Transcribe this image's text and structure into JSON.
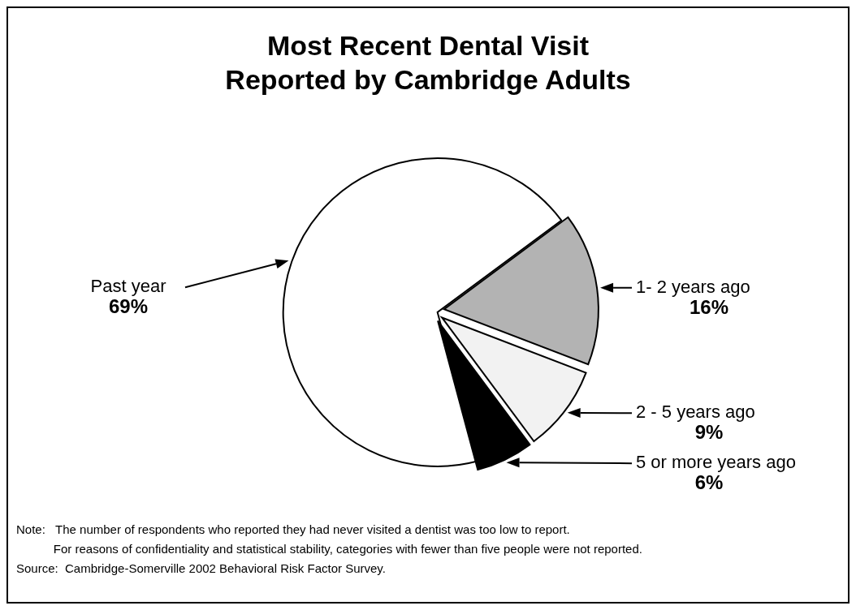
{
  "chart_data": {
    "type": "pie",
    "title": "Most Recent Dental Visit\nReported by Cambridge Adults",
    "categories": [
      "Past year",
      "1- 2 years ago",
      "2 - 5 years ago",
      "5 or more years ago"
    ],
    "values": [
      69,
      16,
      9,
      6
    ],
    "colors": [
      "#ffffff",
      "#b3b3b3",
      "#f2f2f2",
      "#000000"
    ],
    "value_labels": [
      "69%",
      "16%",
      "9%",
      "6%"
    ],
    "annotations": [
      "Note:   The number of respondents who reported they had never visited a dentist was too low to report.",
      "           For reasons of confidentiality and statistical stability, categories with fewer than five people were not reported.",
      "Source:  Cambridge-Somerville 2002 Behavioral Risk Factor Survey."
    ]
  }
}
